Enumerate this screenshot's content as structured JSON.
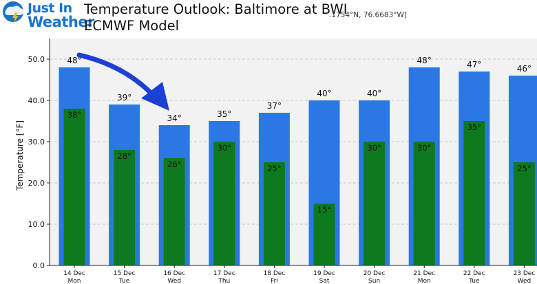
{
  "logo": {
    "line1": "Just In",
    "line2": "Weather"
  },
  "title": {
    "line1": "Temperature Outlook: Baltimore at BWI",
    "line2": "ECMWF Model",
    "coords": ".1754°N, 76.6683°W]"
  },
  "chart_data": {
    "type": "bar",
    "title": "Temperature Outlook: Baltimore at BWI",
    "ylabel": "Temperature [°F]",
    "ylim": [
      0,
      55
    ],
    "yticks": [
      "0.0",
      "10.0",
      "20.0",
      "30.0",
      "40.0",
      "50.0"
    ],
    "grid": true,
    "categories": [
      [
        "14 Dec",
        "Mon"
      ],
      [
        "15 Dec",
        "Tue"
      ],
      [
        "16 Dec",
        "Wed"
      ],
      [
        "17 Dec",
        "Thu"
      ],
      [
        "18 Dec",
        "Fri"
      ],
      [
        "19 Dec",
        "Sat"
      ],
      [
        "20 Dec",
        "Sun"
      ],
      [
        "21 Dec",
        "Mon"
      ],
      [
        "22 Dec",
        "Tue"
      ],
      [
        "23 Dec",
        "Wed"
      ]
    ],
    "series": [
      {
        "role": "high",
        "color": "#2b78e4",
        "values": [
          48,
          39,
          34,
          35,
          37,
          40,
          40,
          48,
          47,
          46
        ],
        "labels": [
          "48°",
          "39°",
          "34°",
          "35°",
          "37°",
          "40°",
          "40°",
          "48°",
          "47°",
          "46°"
        ]
      },
      {
        "role": "low",
        "color": "#0e7a1e",
        "values": [
          38,
          28,
          26,
          30,
          25,
          15,
          30,
          30,
          35,
          25
        ],
        "labels": [
          "38°",
          "28°",
          "26°",
          "30°",
          "25°",
          "15°",
          "30°",
          "30°",
          "35°",
          "25°"
        ]
      }
    ],
    "annotation": {
      "type": "arrow",
      "color": "#1c3fd6"
    }
  }
}
